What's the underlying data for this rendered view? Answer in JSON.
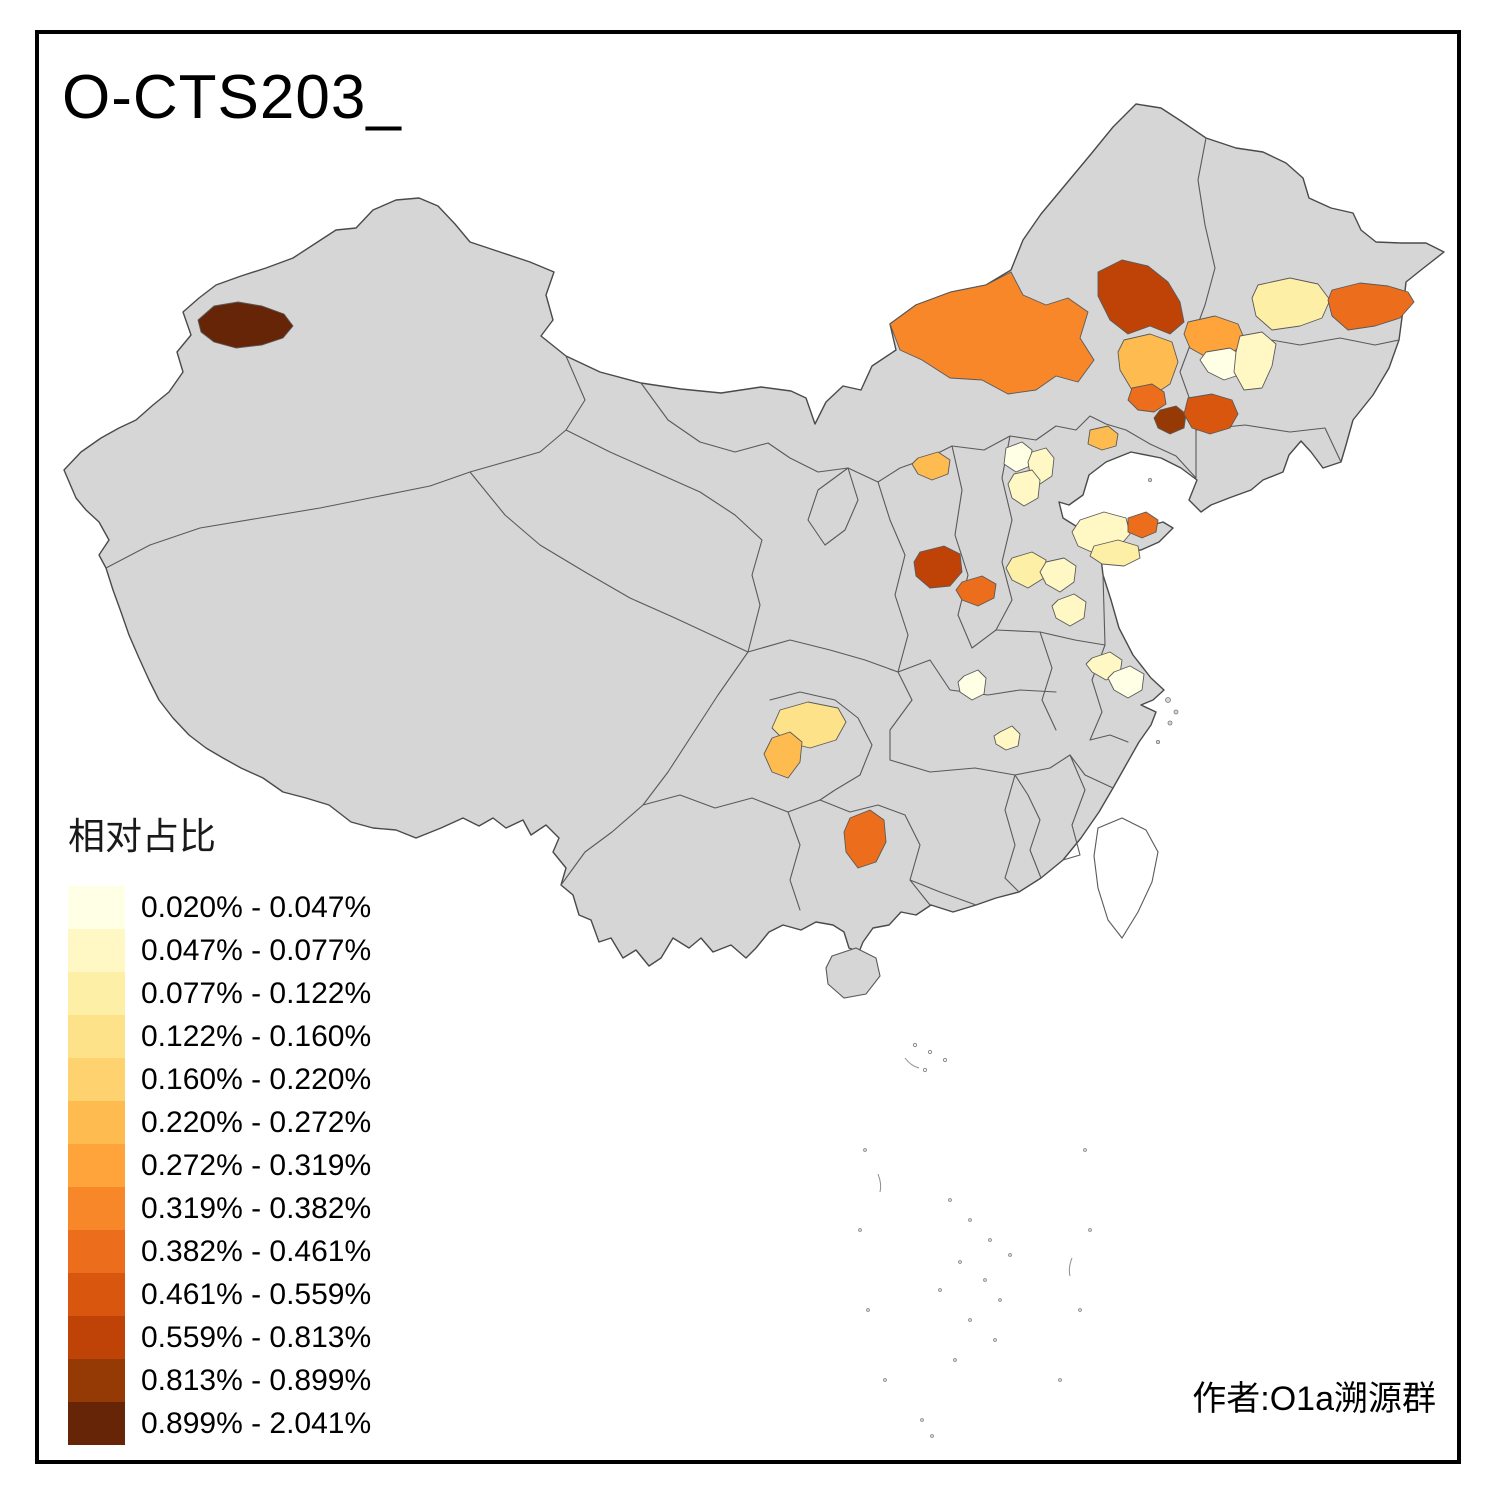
{
  "title": "O-CTS203_",
  "attribution": "作者:O1a溯源群",
  "legend": {
    "title": "相对占比",
    "classes": [
      {
        "label": "0.020% - 0.047%",
        "color": "#FFFFE5"
      },
      {
        "label": "0.047% - 0.077%",
        "color": "#FFF8C5"
      },
      {
        "label": "0.077% - 0.122%",
        "color": "#FEEFA6"
      },
      {
        "label": "0.122% - 0.160%",
        "color": "#FEE289"
      },
      {
        "label": "0.160% - 0.220%",
        "color": "#FED26E"
      },
      {
        "label": "0.220% - 0.272%",
        "color": "#FEBC50"
      },
      {
        "label": "0.272% - 0.319%",
        "color": "#FEA43B"
      },
      {
        "label": "0.319% - 0.382%",
        "color": "#F8872A"
      },
      {
        "label": "0.382% - 0.461%",
        "color": "#EC6D1B"
      },
      {
        "label": "0.461% - 0.559%",
        "color": "#D9560E"
      },
      {
        "label": "0.559% - 0.813%",
        "color": "#BF4307"
      },
      {
        "label": "0.813% - 0.899%",
        "color": "#953A04"
      },
      {
        "label": "0.899% - 2.041%",
        "color": "#662506"
      }
    ]
  },
  "map": {
    "base_fill": "#D6D6D6",
    "boundary_color": "#5A5A5A",
    "sea_fill": "#FFFFFF",
    "regions": [
      {
        "id": "r1",
        "class_index": 12
      },
      {
        "id": "r2",
        "class_index": 7
      },
      {
        "id": "r3",
        "class_index": 10
      },
      {
        "id": "r4",
        "class_index": 2
      },
      {
        "id": "r5",
        "class_index": 8
      },
      {
        "id": "r6",
        "class_index": 6
      },
      {
        "id": "r7",
        "class_index": 0
      },
      {
        "id": "r8",
        "class_index": 1
      },
      {
        "id": "r9",
        "class_index": 5
      },
      {
        "id": "r10",
        "class_index": 8
      },
      {
        "id": "r11",
        "class_index": 11
      },
      {
        "id": "r12",
        "class_index": 9
      },
      {
        "id": "r13",
        "class_index": 5
      },
      {
        "id": "r14",
        "class_index": 5
      },
      {
        "id": "r15",
        "class_index": 0
      },
      {
        "id": "r16",
        "class_index": 1
      },
      {
        "id": "r17",
        "class_index": 1
      },
      {
        "id": "r18",
        "class_index": 1
      },
      {
        "id": "r19",
        "class_index": 8
      },
      {
        "id": "r20",
        "class_index": 2
      },
      {
        "id": "r21",
        "class_index": 10
      },
      {
        "id": "r22",
        "class_index": 8
      },
      {
        "id": "r23",
        "class_index": 2
      },
      {
        "id": "r24",
        "class_index": 1
      },
      {
        "id": "r25",
        "class_index": 1
      },
      {
        "id": "r26",
        "class_index": 0
      },
      {
        "id": "r27",
        "class_index": 1
      },
      {
        "id": "r28",
        "class_index": 0
      },
      {
        "id": "r29",
        "class_index": 1
      },
      {
        "id": "r30",
        "class_index": 3
      },
      {
        "id": "r31",
        "class_index": 5
      },
      {
        "id": "r32",
        "class_index": 8
      }
    ]
  },
  "chart_data": {
    "type": "choropleth",
    "title": "O-CTS203_",
    "legend_title": "相对占比",
    "unit": "%",
    "class_breaks": [
      0.02,
      0.047,
      0.077,
      0.122,
      0.16,
      0.22,
      0.272,
      0.319,
      0.382,
      0.461,
      0.559,
      0.813,
      0.899,
      2.041
    ]
  }
}
